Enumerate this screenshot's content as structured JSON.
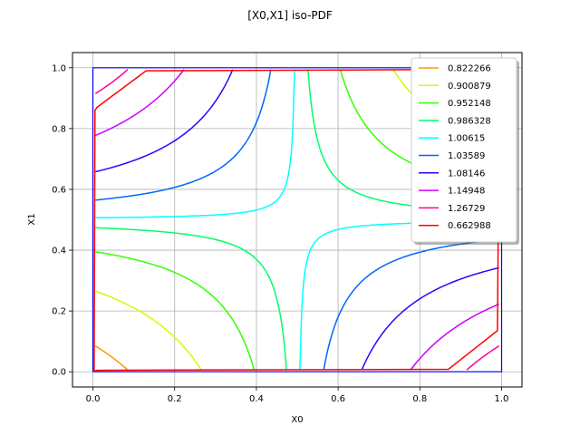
{
  "chart_data": {
    "type": "line",
    "title": "[X0,X1] iso-PDF",
    "xlabel": "X0",
    "ylabel": "X1",
    "xlim": [
      -0.05,
      1.05
    ],
    "ylim": [
      -0.05,
      1.05
    ],
    "xticks": [
      "0.0",
      "0.2",
      "0.4",
      "0.6",
      "0.8",
      "1.0"
    ],
    "yticks": [
      "0.0",
      "0.2",
      "0.4",
      "0.6",
      "0.8",
      "1.0"
    ],
    "grid": true,
    "legend_position": "top-right",
    "domain_box": {
      "color": "#0000ff",
      "x": [
        0,
        0,
        1,
        1,
        0
      ],
      "y": [
        0,
        1,
        1,
        0,
        0
      ]
    },
    "series": [
      {
        "name": "0.822266",
        "color": "#ff9900",
        "k": 0.205
      },
      {
        "name": "0.900879",
        "color": "#ccff00",
        "k": 0.116
      },
      {
        "name": "0.952148",
        "color": "#33ff00",
        "k": 0.052
      },
      {
        "name": "0.986328",
        "color": "#00ff66",
        "k": 0.013
      },
      {
        "name": "1.00615",
        "color": "#00ffff",
        "k": -0.0032
      },
      {
        "name": "1.03589",
        "color": "#0066ff",
        "k": -0.032
      },
      {
        "name": "1.08146",
        "color": "#3300ff",
        "k": -0.078
      },
      {
        "name": "1.14948",
        "color": "#cc00ff",
        "k": -0.137
      },
      {
        "name": "1.26729",
        "color": "#ff0099",
        "k": -0.205
      },
      {
        "name": "0.662988",
        "color": "#ff0000",
        "k": null,
        "segments": [
          {
            "x": [
              0.003,
              0.005,
              0.01,
              0.13,
              0.99
            ],
            "y": [
              0.003,
              0.86,
              0.87,
              0.99,
              0.995
            ]
          },
          {
            "x": [
              0.003,
              0.01,
              0.87,
              0.99,
              0.995
            ],
            "y": [
              0.003,
              0.005,
              0.008,
              0.135,
              0.995
            ]
          }
        ]
      }
    ]
  }
}
